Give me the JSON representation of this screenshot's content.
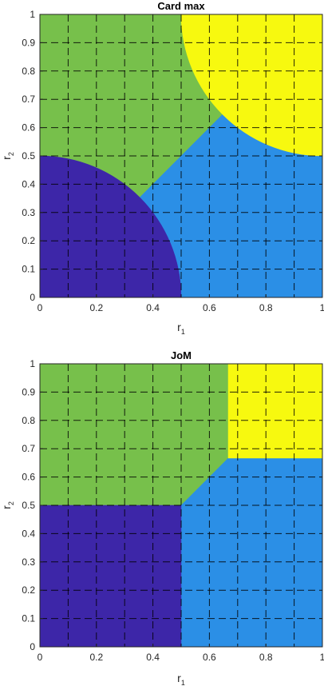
{
  "chart_data": [
    {
      "type": "heatmap",
      "title": "Card max",
      "xlabel": "r",
      "xlabel_subscript": "1",
      "ylabel": "r",
      "ylabel_subscript": "2",
      "xlim": [
        0,
        1
      ],
      "ylim": [
        0,
        1
      ],
      "xticks": [
        "0",
        "0.2",
        "0.4",
        "0.6",
        "0.8",
        "1"
      ],
      "yticks": [
        "0",
        "0.1",
        "0.2",
        "0.3",
        "0.4",
        "0.5",
        "0.6",
        "0.7",
        "0.8",
        "0.9",
        "1"
      ],
      "grid": "dashed",
      "regions": [
        {
          "color": "#77C04B",
          "polygon": [
            [
              0,
              0.5
            ],
            [
              0,
              1
            ],
            [
              0.5,
              1
            ],
            [
              0.6667,
              0.6667
            ],
            [
              0.3333,
              0.3333
            ]
          ]
        },
        {
          "color": "#2B8FE6",
          "polygon": [
            [
              0.5,
              0
            ],
            [
              1,
              0
            ],
            [
              1,
              0.5
            ],
            [
              0.6667,
              0.6667
            ],
            [
              0.3333,
              0.3333
            ]
          ]
        },
        {
          "color": "#3D26A8",
          "arc": {
            "cx": 0,
            "cy": 0,
            "r": 0.5
          }
        },
        {
          "color": "#F7F90F",
          "arc": {
            "cx": 1,
            "cy": 1,
            "r": 0.5
          }
        }
      ]
    },
    {
      "type": "heatmap",
      "title": "JoM",
      "xlabel": "r",
      "xlabel_subscript": "1",
      "ylabel": "r",
      "ylabel_subscript": "2",
      "xlim": [
        0,
        1
      ],
      "ylim": [
        0,
        1
      ],
      "xticks": [
        "0",
        "0.2",
        "0.4",
        "0.6",
        "0.8",
        "1"
      ],
      "yticks": [
        "0",
        "0.1",
        "0.2",
        "0.3",
        "0.4",
        "0.5",
        "0.6",
        "0.7",
        "0.8",
        "0.9",
        "1"
      ],
      "grid": "dashed",
      "regions": [
        {
          "color": "#77C04B",
          "polygon": [
            [
              0,
              0.5
            ],
            [
              0,
              1
            ],
            [
              0.6667,
              1
            ],
            [
              0.6667,
              0.6667
            ],
            [
              0.5,
              0.5
            ]
          ]
        },
        {
          "color": "#2B8FE6",
          "polygon": [
            [
              0.5,
              0
            ],
            [
              1,
              0
            ],
            [
              1,
              0.6667
            ],
            [
              0.6667,
              0.6667
            ],
            [
              0.5,
              0.5
            ]
          ]
        },
        {
          "color": "#3D26A8",
          "polygon": [
            [
              0,
              0
            ],
            [
              0.5,
              0
            ],
            [
              0.5,
              0.5
            ],
            [
              0,
              0.5
            ]
          ]
        },
        {
          "color": "#F7F90F",
          "polygon": [
            [
              0.6667,
              0.6667
            ],
            [
              1,
              0.6667
            ],
            [
              1,
              1
            ],
            [
              0.6667,
              1
            ]
          ]
        }
      ]
    }
  ]
}
